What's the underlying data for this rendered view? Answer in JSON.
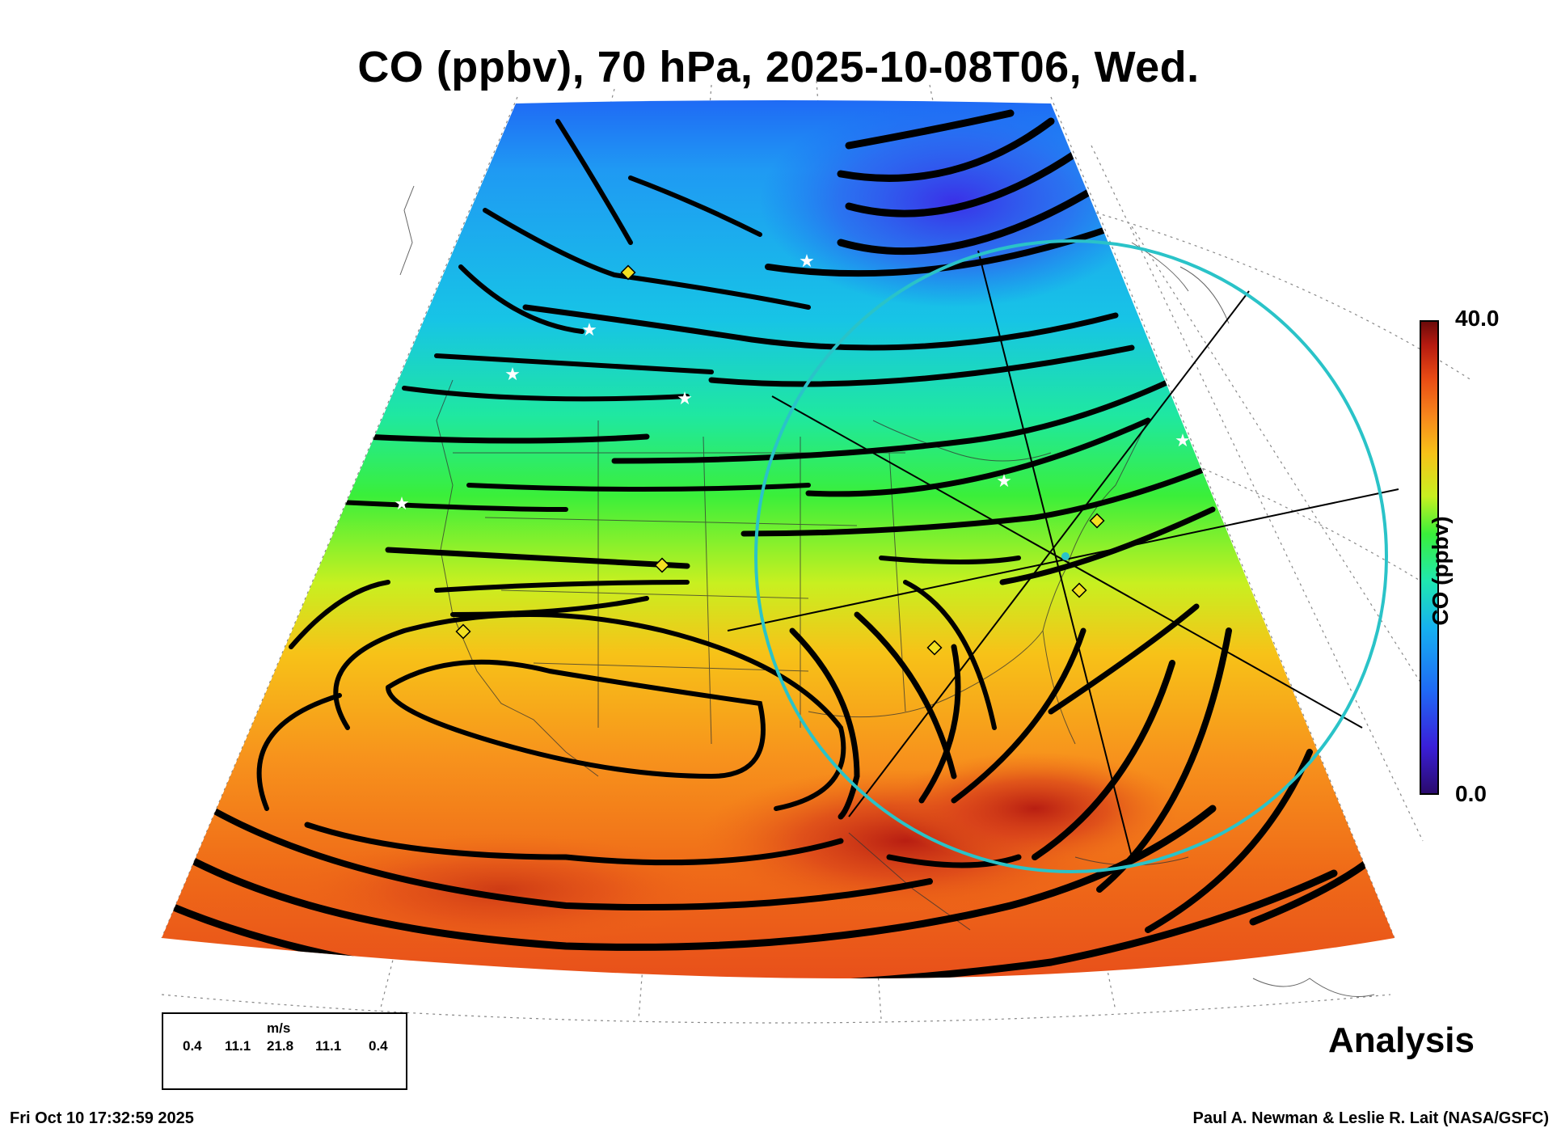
{
  "title": "CO (ppbv), 70 hPa, 2025-10-08T06, Wed.",
  "colorbar": {
    "label": "CO (ppbv)",
    "max_label": "40.0",
    "min_label": "0.0",
    "colors": [
      "#2a0a6b",
      "#3a1fd8",
      "#1f6af5",
      "#16b0f0",
      "#1fe8b0",
      "#3aef3a",
      "#c8f020",
      "#f7c218",
      "#f7861c",
      "#e84a14",
      "#b51a10",
      "#6a0a0a"
    ]
  },
  "wind_legend": {
    "unit": "m/s",
    "values": [
      "0.4",
      "11.1",
      "21.8",
      "11.1",
      "0.4"
    ]
  },
  "analysis_label": "Analysis",
  "timestamp": "Fri Oct 10 17:32:59 2025",
  "credit": "Paul A. Newman & Leslie R. Lait (NASA/GSFC)",
  "overlay": {
    "circle_color": "#2ac3c8",
    "marker_color": "#f2e021"
  }
}
